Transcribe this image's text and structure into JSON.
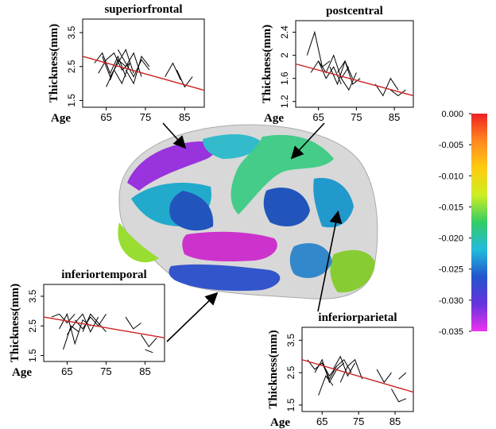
{
  "chart_data": [
    {
      "type": "line",
      "title": "superiorfrontal",
      "x_label": "Age",
      "y_label": "Thickness(mm)",
      "xlim": [
        59,
        90
      ],
      "xticks": [
        65,
        75,
        85
      ],
      "ylim": [
        1.3,
        3.9
      ],
      "yticks": [
        1.5,
        2.5,
        3.5
      ],
      "series": [
        {
          "color": "#000000",
          "x": [
            62,
            64,
            66,
            68,
            70
          ],
          "values": [
            2.6,
            2.9,
            2.3,
            2.8,
            2.2
          ]
        },
        {
          "color": "#000000",
          "x": [
            63,
            65,
            67,
            69,
            71
          ],
          "values": [
            2.3,
            2.7,
            2.9,
            2.4,
            2.6
          ]
        },
        {
          "color": "#000000",
          "x": [
            64,
            66,
            68,
            70,
            72
          ],
          "values": [
            2.8,
            2.2,
            2.6,
            3.0,
            2.3
          ]
        },
        {
          "color": "#000000",
          "x": [
            66,
            68,
            70,
            72,
            74
          ],
          "values": [
            2.1,
            2.7,
            2.5,
            2.9,
            2.2
          ]
        },
        {
          "color": "#000000",
          "x": [
            68,
            70,
            72,
            74,
            76
          ],
          "values": [
            3.0,
            2.6,
            2.2,
            2.7,
            2.4
          ]
        },
        {
          "color": "#000000",
          "x": [
            70,
            72,
            74,
            76
          ],
          "values": [
            2.4,
            2.0,
            2.8,
            2.5
          ]
        },
        {
          "color": "#000000",
          "x": [
            80,
            82,
            84
          ],
          "values": [
            2.2,
            2.6,
            2.1
          ]
        },
        {
          "color": "#000000",
          "x": [
            83,
            85,
            87
          ],
          "values": [
            2.4,
            1.9,
            2.2
          ]
        },
        {
          "color": "#000000",
          "x": [
            65,
            67,
            69,
            71
          ],
          "values": [
            1.9,
            2.4,
            2.0,
            2.6
          ]
        },
        {
          "color": "#cc2222",
          "x": [
            59,
            90
          ],
          "values": [
            2.8,
            1.8
          ]
        }
      ]
    },
    {
      "type": "line",
      "title": "postcentral",
      "x_label": "Age",
      "y_label": "Thickness(mm)",
      "xlim": [
        59,
        90
      ],
      "xticks": [
        65,
        75,
        85
      ],
      "ylim": [
        1.1,
        2.6
      ],
      "yticks": [
        1.2,
        1.6,
        2.0,
        2.4
      ],
      "series": [
        {
          "color": "#000000",
          "x": [
            62,
            64,
            66,
            68
          ],
          "values": [
            2.0,
            2.4,
            1.8,
            1.9
          ]
        },
        {
          "color": "#000000",
          "x": [
            63,
            65,
            67,
            69,
            71
          ],
          "values": [
            1.7,
            1.9,
            1.6,
            1.8,
            1.5
          ]
        },
        {
          "color": "#000000",
          "x": [
            65,
            67,
            69,
            71,
            73
          ],
          "values": [
            1.9,
            1.7,
            2.0,
            1.6,
            1.8
          ]
        },
        {
          "color": "#000000",
          "x": [
            68,
            70,
            72,
            74
          ],
          "values": [
            1.8,
            1.5,
            1.9,
            1.6
          ]
        },
        {
          "color": "#000000",
          "x": [
            70,
            72,
            74,
            76
          ],
          "values": [
            1.7,
            1.9,
            1.5,
            1.6
          ]
        },
        {
          "color": "#000000",
          "x": [
            71,
            73,
            75
          ],
          "values": [
            1.6,
            1.4,
            1.7
          ]
        },
        {
          "color": "#000000",
          "x": [
            80,
            82,
            84,
            86
          ],
          "values": [
            1.5,
            1.3,
            1.6,
            1.4
          ]
        },
        {
          "color": "#000000",
          "x": [
            84,
            86,
            88
          ],
          "values": [
            1.4,
            1.3,
            1.4
          ]
        },
        {
          "color": "#cc2222",
          "x": [
            59,
            90
          ],
          "values": [
            1.85,
            1.3
          ]
        }
      ]
    },
    {
      "type": "line",
      "title": "inferiortemporal",
      "x_label": "Age",
      "y_label": "Thickness(mm)",
      "xlim": [
        59,
        90
      ],
      "xticks": [
        65,
        75,
        85
      ],
      "ylim": [
        1.3,
        3.9
      ],
      "yticks": [
        1.5,
        2.5,
        3.5
      ],
      "series": [
        {
          "color": "#000000",
          "x": [
            61,
            63,
            65,
            67
          ],
          "values": [
            2.8,
            2.9,
            2.6,
            2.9
          ]
        },
        {
          "color": "#000000",
          "x": [
            63,
            65,
            67,
            69,
            71
          ],
          "values": [
            2.4,
            2.9,
            1.9,
            2.7,
            2.5
          ]
        },
        {
          "color": "#000000",
          "x": [
            65,
            67,
            69,
            71,
            73
          ],
          "values": [
            2.2,
            2.6,
            2.9,
            2.3,
            2.8
          ]
        },
        {
          "color": "#000000",
          "x": [
            67,
            69,
            71,
            73,
            75
          ],
          "values": [
            2.7,
            2.4,
            2.8,
            2.5,
            2.9
          ]
        },
        {
          "color": "#000000",
          "x": [
            69,
            71,
            73,
            75
          ],
          "values": [
            2.3,
            2.9,
            2.6,
            2.3
          ]
        },
        {
          "color": "#000000",
          "x": [
            64,
            66,
            68
          ],
          "values": [
            1.7,
            2.5,
            2.3
          ]
        },
        {
          "color": "#000000",
          "x": [
            80,
            82,
            84
          ],
          "values": [
            2.8,
            2.4,
            2.6
          ]
        },
        {
          "color": "#000000",
          "x": [
            84,
            86,
            88
          ],
          "values": [
            2.2,
            1.8,
            2.1
          ]
        },
        {
          "color": "#000000",
          "x": [
            85,
            87
          ],
          "values": [
            1.7,
            1.6
          ]
        },
        {
          "color": "#cc2222",
          "x": [
            59,
            90
          ],
          "values": [
            2.8,
            2.1
          ]
        }
      ]
    },
    {
      "type": "line",
      "title": "inferiorparietal",
      "x_label": "Age",
      "y_label": "Thickness(mm)",
      "xlim": [
        59.5,
        90
      ],
      "xticks": [
        65,
        75,
        85
      ],
      "ylim": [
        1.3,
        3.9
      ],
      "yticks": [
        1.5,
        2.5,
        3.5
      ],
      "series": [
        {
          "color": "#000000",
          "x": [
            61,
            63,
            65,
            67,
            69
          ],
          "values": [
            2.9,
            2.6,
            2.8,
            2.4,
            2.7
          ]
        },
        {
          "color": "#000000",
          "x": [
            63,
            65,
            67,
            69,
            71
          ],
          "values": [
            2.5,
            2.9,
            2.2,
            2.6,
            2.8
          ]
        },
        {
          "color": "#000000",
          "x": [
            65,
            67,
            69,
            71,
            73
          ],
          "values": [
            2.8,
            2.3,
            2.7,
            2.9,
            2.5
          ]
        },
        {
          "color": "#000000",
          "x": [
            68,
            70,
            72,
            74
          ],
          "values": [
            2.6,
            3.0,
            2.4,
            2.8
          ]
        },
        {
          "color": "#000000",
          "x": [
            70,
            72,
            74,
            76
          ],
          "values": [
            2.2,
            2.7,
            2.9,
            2.3
          ]
        },
        {
          "color": "#000000",
          "x": [
            64,
            66,
            68
          ],
          "values": [
            1.8,
            2.4,
            2.1
          ]
        },
        {
          "color": "#000000",
          "x": [
            80,
            82,
            84
          ],
          "values": [
            2.6,
            2.2,
            2.5
          ]
        },
        {
          "color": "#000000",
          "x": [
            84,
            86,
            88
          ],
          "values": [
            2.0,
            1.6,
            1.7
          ]
        },
        {
          "color": "#000000",
          "x": [
            86,
            88
          ],
          "values": [
            2.3,
            2.5
          ]
        },
        {
          "color": "#cc2222",
          "x": [
            59.5,
            90
          ],
          "values": [
            2.9,
            1.9
          ]
        }
      ]
    }
  ],
  "colorbar": {
    "lim": [
      -0.035,
      0
    ],
    "colors": [
      "#ee33ee",
      "#6633dd",
      "#2255cc",
      "#22bbdd",
      "#33cc66",
      "#ccee22",
      "#ffcc11",
      "#ff8822",
      "#ee2222"
    ],
    "ticks": [
      {
        "value": 0,
        "label": "0.000"
      },
      {
        "value": -0.005,
        "label": "-0.005"
      },
      {
        "value": -0.01,
        "label": "-0.010"
      },
      {
        "value": -0.015,
        "label": "-0.015"
      },
      {
        "value": -0.02,
        "label": "-0.020"
      },
      {
        "value": -0.025,
        "label": "-0.025"
      },
      {
        "value": -0.03,
        "label": "-0.030"
      },
      {
        "value": -0.035,
        "label": "-0.035"
      }
    ]
  }
}
